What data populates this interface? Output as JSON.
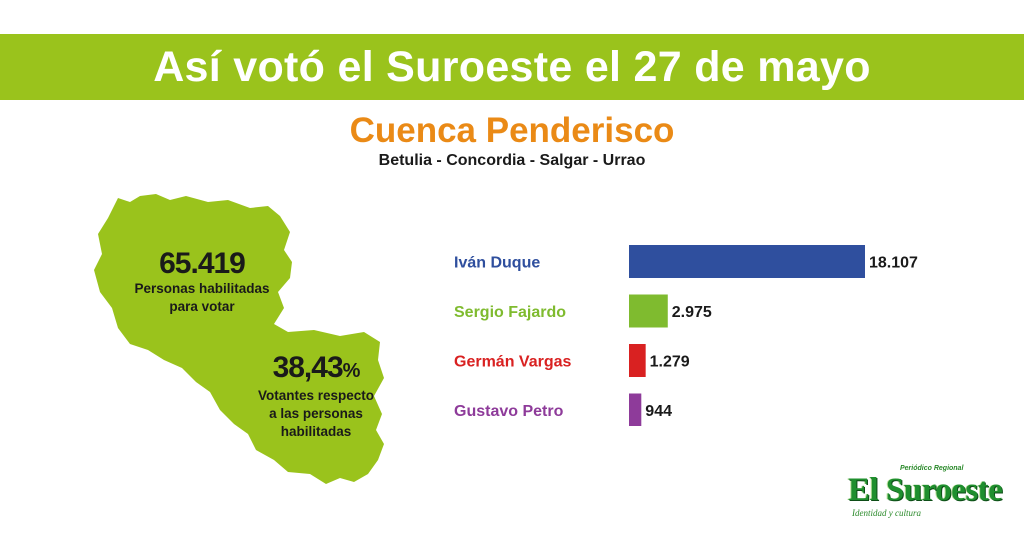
{
  "header": {
    "title": "Así votó el Suroeste el 27 de mayo",
    "subtitle": "Cuenca Penderisco",
    "municipios": "Betulia - Concordia - Salgar - Urrao"
  },
  "stats": {
    "habilitados_value": "65.419",
    "habilitados_label_1": "Personas habilitadas",
    "habilitados_label_2": "para votar",
    "participacion_value": "38,43",
    "participacion_unit": "%",
    "participacion_label_1": "Votantes respecto",
    "participacion_label_2": "a las personas",
    "participacion_label_3": "habilitadas"
  },
  "colors": {
    "banner": "#9ac31c",
    "map": "#9ac31c",
    "subtitle": "#ea8a16"
  },
  "chart_data": {
    "type": "bar",
    "orientation": "horizontal",
    "categories": [
      "Iván Duque",
      "Sergio Fajardo",
      "Germán Vargas",
      "Gustavo Petro"
    ],
    "values": [
      18107,
      2975,
      1279,
      944
    ],
    "value_labels": [
      "18.107",
      "2.975",
      "1.279",
      "944"
    ],
    "colors": [
      "#2f4f9e",
      "#7fbb2f",
      "#d92121",
      "#8e3b9a"
    ],
    "xlim": [
      0,
      18107
    ],
    "grid": false,
    "legend": "none"
  },
  "logo": {
    "small_text": "Periódico Regional",
    "main_text": "El Suroeste",
    "tagline": "Identidad y cultura"
  }
}
